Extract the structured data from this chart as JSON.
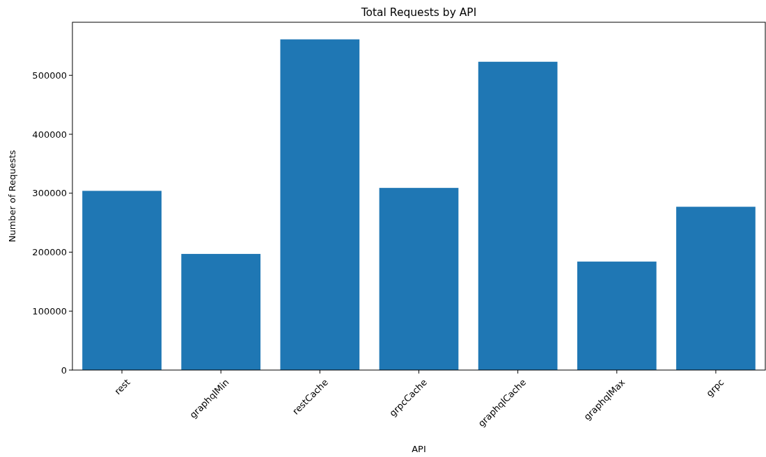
{
  "chart_data": {
    "type": "bar",
    "title": "Total Requests by API",
    "xlabel": "API",
    "ylabel": "Number of Requests",
    "categories": [
      "rest",
      "graphqlMin",
      "restCache",
      "grpcCache",
      "graphqlCache",
      "graphqlMax",
      "grpc"
    ],
    "values": [
      304000,
      197000,
      561000,
      309000,
      523000,
      184000,
      277000
    ],
    "color": "#1f77b4",
    "ylim": [
      0,
      590000
    ],
    "yticks": [
      0,
      100000,
      200000,
      300000,
      400000,
      500000
    ],
    "grid": false
  }
}
